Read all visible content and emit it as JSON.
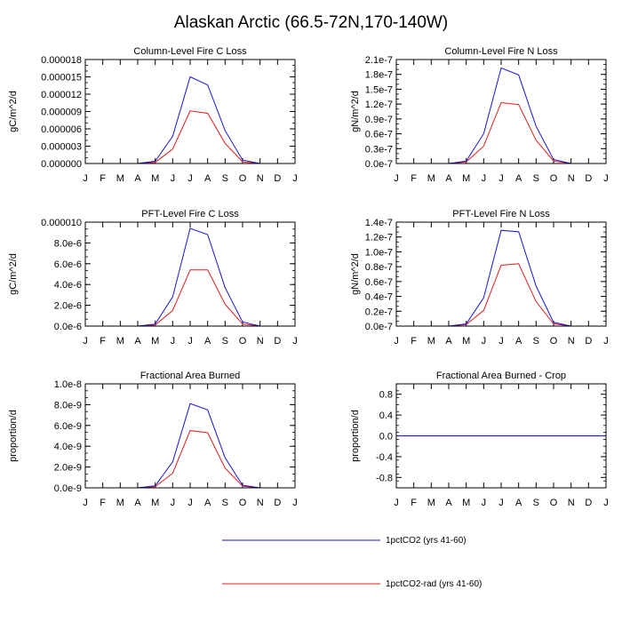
{
  "title": "Alaskan Arctic (66.5-72N,170-140W)",
  "colors": {
    "series1": "#1414d6",
    "series2": "#e01b1b",
    "axis": "#000000",
    "background": "#ffffff"
  },
  "legend": {
    "placement": "bottom-center",
    "entries": [
      "1pctCO2 (yrs 41-60)",
      "1pctCO2-rad (yrs 41-60)"
    ]
  },
  "chart_data": [
    {
      "type": "line",
      "title": "Column-Level Fire C Loss",
      "xlabel": "",
      "ylabel": "gC/m^2/d",
      "categories": [
        "J",
        "F",
        "M",
        "A",
        "M",
        "J",
        "J",
        "A",
        "S",
        "O",
        "N",
        "D",
        "J"
      ],
      "ylim": [
        0,
        1.8e-05
      ],
      "yticks": [
        "0.000000",
        "0.000003",
        "0.000006",
        "0.000009",
        "0.000012",
        "0.000015",
        "0.000018"
      ],
      "series": [
        {
          "name": "1pctCO2 (yrs 41-60)",
          "values": [
            0,
            0,
            0,
            0,
            4e-07,
            4.7e-06,
            1.5e-05,
            1.36e-05,
            5.7e-06,
            6e-07,
            0,
            0,
            0
          ]
        },
        {
          "name": "1pctCO2-rad (yrs 41-60)",
          "values": [
            0,
            0,
            0,
            0,
            2e-07,
            2.5e-06,
            9.1e-06,
            8.7e-06,
            3.5e-06,
            3e-07,
            0,
            0,
            0
          ]
        }
      ]
    },
    {
      "type": "line",
      "title": "Column-Level Fire N Loss",
      "xlabel": "",
      "ylabel": "gN/m^2/d",
      "categories": [
        "J",
        "F",
        "M",
        "A",
        "M",
        "J",
        "J",
        "A",
        "S",
        "O",
        "N",
        "D",
        "J"
      ],
      "ylim": [
        0,
        2.1e-07
      ],
      "yticks": [
        "0.0e-7",
        "0.3e-7",
        "0.6e-7",
        "0.9e-7",
        "1.2e-7",
        "1.5e-7",
        "1.8e-7",
        "2.1e-7"
      ],
      "series": [
        {
          "name": "1pctCO2 (yrs 41-60)",
          "values": [
            0,
            0,
            0,
            0,
            5e-09,
            6e-08,
            1.93e-07,
            1.79e-07,
            7.5e-08,
            8e-09,
            0,
            0,
            0
          ]
        },
        {
          "name": "1pctCO2-rad (yrs 41-60)",
          "values": [
            0,
            0,
            0,
            0,
            3e-09,
            3.5e-08,
            1.23e-07,
            1.19e-07,
            4.7e-08,
            5e-09,
            0,
            0,
            0
          ]
        }
      ]
    },
    {
      "type": "line",
      "title": "PFT-Level Fire C Loss",
      "xlabel": "",
      "ylabel": "gC/m^2/d",
      "categories": [
        "J",
        "F",
        "M",
        "A",
        "M",
        "J",
        "J",
        "A",
        "S",
        "O",
        "N",
        "D",
        "J"
      ],
      "ylim": [
        0,
        1e-05
      ],
      "yticks": [
        "0.0e-6",
        "2.0e-6",
        "4.0e-6",
        "6.0e-6",
        "8.0e-6",
        "0.000010"
      ],
      "series": [
        {
          "name": "1pctCO2 (yrs 41-60)",
          "values": [
            0,
            0,
            0,
            0,
            2e-07,
            2.8e-06,
            9.4e-06,
            8.8e-06,
            3.7e-06,
            4e-07,
            0,
            0,
            0
          ]
        },
        {
          "name": "1pctCO2-rad (yrs 41-60)",
          "values": [
            0,
            0,
            0,
            0,
            1e-07,
            1.5e-06,
            5.4e-06,
            5.4e-06,
            2.1e-06,
            2e-07,
            0,
            0,
            0
          ]
        }
      ]
    },
    {
      "type": "line",
      "title": "PFT-Level Fire N Loss",
      "xlabel": "",
      "ylabel": "gN/m^2/d",
      "categories": [
        "J",
        "F",
        "M",
        "A",
        "M",
        "J",
        "J",
        "A",
        "S",
        "O",
        "N",
        "D",
        "J"
      ],
      "ylim": [
        0,
        1.4e-07
      ],
      "yticks": [
        "0.0e-7",
        "0.2e-7",
        "0.4e-7",
        "0.6e-7",
        "0.8e-7",
        "1.0e-7",
        "1.2e-7",
        "1.4e-7"
      ],
      "series": [
        {
          "name": "1pctCO2 (yrs 41-60)",
          "values": [
            0,
            0,
            0,
            0,
            3e-09,
            3.8e-08,
            1.29e-07,
            1.27e-07,
            5.4e-08,
            5e-09,
            0,
            0,
            0
          ]
        },
        {
          "name": "1pctCO2-rad (yrs 41-60)",
          "values": [
            0,
            0,
            0,
            0,
            2e-09,
            2.1e-08,
            8.2e-08,
            8.4e-08,
            3.3e-08,
            3e-09,
            0,
            0,
            0
          ]
        }
      ]
    },
    {
      "type": "line",
      "title": "Fractional Area Burned",
      "xlabel": "",
      "ylabel": "proportion/d",
      "categories": [
        "J",
        "F",
        "M",
        "A",
        "M",
        "J",
        "J",
        "A",
        "S",
        "O",
        "N",
        "D",
        "J"
      ],
      "ylim": [
        0,
        1e-08
      ],
      "yticks": [
        "0.0e-9",
        "2.0e-9",
        "4.0e-9",
        "6.0e-9",
        "8.0e-9",
        "1.0e-8"
      ],
      "series": [
        {
          "name": "1pctCO2 (yrs 41-60)",
          "values": [
            0,
            0,
            0,
            0,
            2e-10,
            2.5e-09,
            8.1e-09,
            7.5e-09,
            2.9e-09,
            2.5e-10,
            0,
            0,
            0
          ]
        },
        {
          "name": "1pctCO2-rad (yrs 41-60)",
          "values": [
            0,
            0,
            0,
            0,
            1e-10,
            1.4e-09,
            5.5e-09,
            5.3e-09,
            1.9e-09,
            1.5e-10,
            0,
            0,
            0
          ]
        }
      ]
    },
    {
      "type": "line",
      "title": "Fractional Area Burned - Crop",
      "xlabel": "",
      "ylabel": "proportion/d",
      "categories": [
        "J",
        "F",
        "M",
        "A",
        "M",
        "J",
        "J",
        "A",
        "S",
        "O",
        "N",
        "D",
        "J"
      ],
      "ylim": [
        -1,
        1
      ],
      "yticks": [
        "-0.8",
        "-0.4",
        "0.0",
        "0.4",
        "0.8"
      ],
      "ytick_values": [
        -0.8,
        -0.4,
        0,
        0.4,
        0.8
      ],
      "series": [
        {
          "name": "1pctCO2 (yrs 41-60)",
          "values": [
            0,
            0,
            0,
            0,
            0,
            0,
            0,
            0,
            0,
            0,
            0,
            0,
            0
          ]
        },
        {
          "name": "1pctCO2-rad (yrs 41-60)",
          "values": [
            0,
            0,
            0,
            0,
            0,
            0,
            0,
            0,
            0,
            0,
            0,
            0,
            0
          ]
        }
      ]
    }
  ]
}
